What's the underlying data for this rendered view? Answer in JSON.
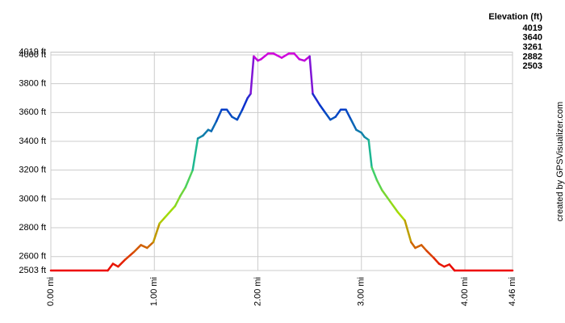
{
  "chart_data": {
    "type": "line",
    "legend_title": "Elevation (ft)",
    "legend": [
      {
        "value": 4019,
        "color": "#dd00dd"
      },
      {
        "value": 3640,
        "color": "#0033cc"
      },
      {
        "value": 3261,
        "color": "#22cc88"
      },
      {
        "value": 2882,
        "color": "#aadd00"
      },
      {
        "value": 2503,
        "color": "#ee0000"
      }
    ],
    "credit": "created by GPSVisualizer.com",
    "grid": true,
    "xlim": [
      0,
      4.46
    ],
    "xticks": [
      {
        "value": 0,
        "label": "0.00 mi"
      },
      {
        "value": 1,
        "label": "1.00 mi"
      },
      {
        "value": 2,
        "label": "2.00 mi"
      },
      {
        "value": 3,
        "label": "3.00 mi"
      },
      {
        "value": 4,
        "label": "4.00 mi"
      },
      {
        "value": 4.46,
        "label": "4.46 mi"
      }
    ],
    "ylim": [
      2503,
      4019
    ],
    "yticks": [
      {
        "value": 2503,
        "label": "2503 ft"
      },
      {
        "value": 2600,
        "label": "2600 ft"
      },
      {
        "value": 2800,
        "label": "2800 ft"
      },
      {
        "value": 3000,
        "label": "3000 ft"
      },
      {
        "value": 3200,
        "label": "3200 ft"
      },
      {
        "value": 3400,
        "label": "3400 ft"
      },
      {
        "value": 3600,
        "label": "3600 ft"
      },
      {
        "value": 3800,
        "label": "3800 ft"
      },
      {
        "value": 4000,
        "label": "4000 ft"
      },
      {
        "value": 4019,
        "label": "4019 ft"
      }
    ],
    "x": [
      0,
      0.55,
      0.6,
      0.65,
      0.72,
      0.8,
      0.87,
      0.93,
      0.99,
      1.05,
      1.1,
      1.2,
      1.25,
      1.3,
      1.37,
      1.42,
      1.47,
      1.52,
      1.55,
      1.6,
      1.65,
      1.7,
      1.75,
      1.8,
      1.85,
      1.9,
      1.93,
      1.96,
      2.0,
      2.03,
      2.1,
      2.15,
      2.23,
      2.3,
      2.35,
      2.4,
      2.45,
      2.5,
      2.53,
      2.6,
      2.65,
      2.7,
      2.75,
      2.8,
      2.85,
      2.9,
      2.95,
      3.0,
      3.03,
      3.07,
      3.1,
      3.15,
      3.2,
      3.28,
      3.35,
      3.42,
      3.48,
      3.52,
      3.58,
      3.63,
      3.7,
      3.75,
      3.8,
      3.85,
      3.9,
      4.46
    ],
    "series": [
      {
        "name": "Elevation",
        "values": [
          2503,
          2503,
          2550,
          2530,
          2580,
          2630,
          2680,
          2660,
          2700,
          2830,
          2870,
          2950,
          3020,
          3080,
          3200,
          3420,
          3440,
          3480,
          3470,
          3540,
          3620,
          3620,
          3570,
          3550,
          3620,
          3700,
          3730,
          3990,
          3960,
          3970,
          4010,
          4010,
          3980,
          4010,
          4010,
          3970,
          3960,
          3990,
          3730,
          3650,
          3600,
          3550,
          3570,
          3620,
          3620,
          3550,
          3480,
          3460,
          3430,
          3410,
          3220,
          3130,
          3060,
          2980,
          2910,
          2850,
          2700,
          2660,
          2680,
          2640,
          2590,
          2550,
          2530,
          2545,
          2503,
          2503
        ]
      }
    ]
  }
}
